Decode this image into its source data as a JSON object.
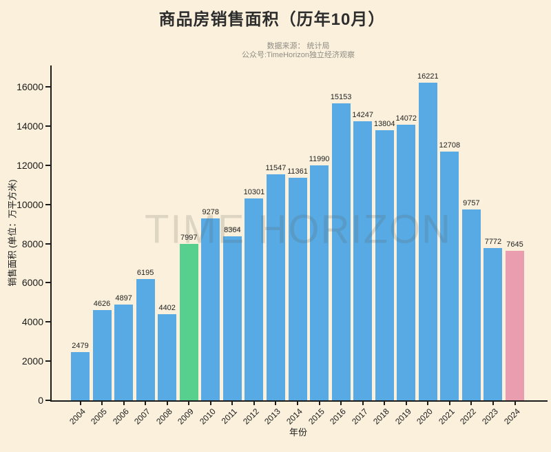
{
  "page": {
    "background": "#FAF0DC"
  },
  "header": {
    "title": "商品房销售面积（历年10月）",
    "source_line": "数据来源： 统计局",
    "account_line": "公众号:TimeHorizon独立经济观察"
  },
  "watermark_text": "TIME HORIZON",
  "chart_data": {
    "type": "bar",
    "title": "商品房销售面积（历年10月）",
    "xlabel": "年份",
    "ylabel": "销售面积 (单位：万平方米)",
    "categories": [
      "2004",
      "2005",
      "2006",
      "2007",
      "2008",
      "2009",
      "2010",
      "2011",
      "2012",
      "2013",
      "2014",
      "2015",
      "2016",
      "2017",
      "2018",
      "2019",
      "2020",
      "2021",
      "2022",
      "2023",
      "2024"
    ],
    "values": [
      2479,
      4626,
      4897,
      6195,
      4402,
      7997,
      9278,
      8364,
      10301,
      11547,
      11361,
      11990,
      15153,
      14247,
      13804,
      14072,
      16221,
      12708,
      9757,
      7772,
      7645
    ],
    "yticks": [
      0,
      2000,
      4000,
      6000,
      8000,
      10000,
      12000,
      14000,
      16000
    ],
    "ylim": [
      0,
      17100
    ],
    "grid": false,
    "legend": "none",
    "value_labels": true,
    "bar_color_default": "#57AAE3",
    "highlights": [
      {
        "category": "2009",
        "color": "#58D08D"
      },
      {
        "category": "2024",
        "color": "#E99DAE"
      }
    ],
    "axis_color": "#1a1a1a"
  }
}
